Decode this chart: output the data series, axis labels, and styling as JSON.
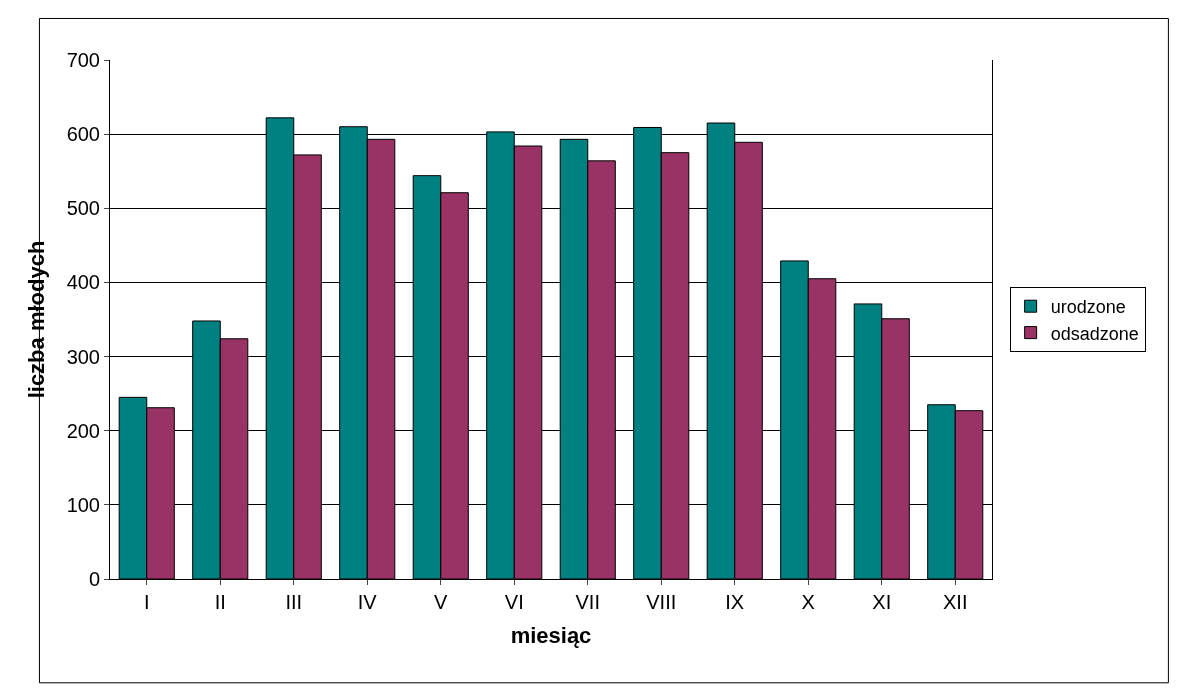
{
  "chart_data": {
    "type": "bar",
    "xlabel": "miesiąc",
    "ylabel": "liczba młodych",
    "categories": [
      "I",
      "II",
      "III",
      "IV",
      "V",
      "VI",
      "VII",
      "VIII",
      "IX",
      "X",
      "XI",
      "XII"
    ],
    "series": [
      {
        "name": "urodzone",
        "color": "#008080",
        "values": [
          245,
          348,
          622,
          610,
          544,
          603,
          593,
          609,
          615,
          429,
          371,
          235
        ]
      },
      {
        "name": "odsadzone",
        "color": "#993366",
        "values": [
          231,
          324,
          572,
          593,
          521,
          584,
          564,
          575,
          589,
          405,
          351,
          227
        ]
      }
    ],
    "ylim": [
      0,
      700
    ],
    "yticks": [
      0,
      100,
      200,
      300,
      400,
      500,
      600,
      700
    ],
    "grid": "y",
    "legend": "right"
  }
}
